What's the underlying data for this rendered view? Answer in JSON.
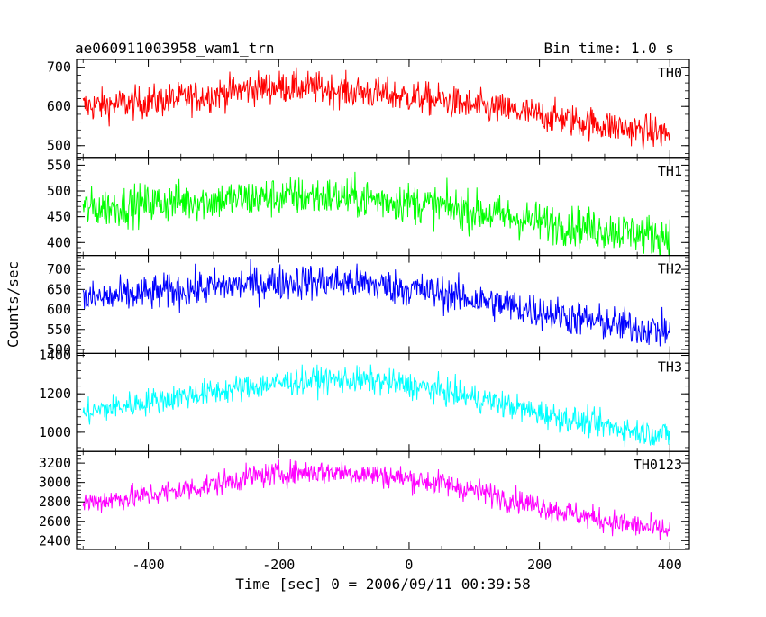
{
  "header": {
    "title": "ae060911003958_wam1_trn",
    "bin_time": "Bin time: 1.0 s"
  },
  "chart_data": {
    "type": "line",
    "title": "ae060911003958_wam1_trn",
    "xlabel": "Time [sec] 0 = 2006/09/11 00:39:58",
    "ylabel": "Counts/sec",
    "xlim": [
      -510,
      430
    ],
    "x_ticks": [
      -400,
      -200,
      0,
      200,
      400
    ],
    "grid": false,
    "panels": [
      {
        "name": "TH0",
        "color": "#ff0000",
        "ylim": [
          470,
          720
        ],
        "y_ticks": [
          500,
          600,
          700
        ],
        "x": [
          -500,
          -450,
          -400,
          -350,
          -300,
          -250,
          -200,
          -150,
          -100,
          -50,
          0,
          50,
          100,
          150,
          200,
          250,
          300,
          350,
          400
        ],
        "values": [
          600,
          605,
          612,
          620,
          630,
          645,
          650,
          648,
          640,
          632,
          625,
          615,
          600,
          590,
          578,
          565,
          552,
          540,
          530
        ],
        "noise": 30
      },
      {
        "name": "TH1",
        "color": "#00ff00",
        "ylim": [
          375,
          565
        ],
        "y_ticks": [
          400,
          450,
          500,
          550
        ],
        "x": [
          -500,
          -450,
          -400,
          -350,
          -300,
          -250,
          -200,
          -150,
          -100,
          -50,
          0,
          50,
          100,
          150,
          200,
          250,
          300,
          350,
          400
        ],
        "values": [
          465,
          470,
          475,
          480,
          482,
          485,
          488,
          490,
          488,
          483,
          478,
          470,
          460,
          450,
          440,
          432,
          425,
          418,
          412
        ],
        "noise": 28
      },
      {
        "name": "TH2",
        "color": "#0000ff",
        "ylim": [
          490,
          735
        ],
        "y_ticks": [
          500,
          550,
          600,
          650,
          700
        ],
        "x": [
          -500,
          -450,
          -400,
          -350,
          -300,
          -250,
          -200,
          -150,
          -100,
          -50,
          0,
          50,
          100,
          150,
          200,
          250,
          300,
          350,
          400
        ],
        "values": [
          625,
          632,
          640,
          648,
          656,
          663,
          668,
          670,
          668,
          662,
          652,
          640,
          625,
          610,
          595,
          580,
          565,
          555,
          545
        ],
        "noise": 32
      },
      {
        "name": "TH3",
        "color": "#00ffff",
        "ylim": [
          900,
          1410
        ],
        "y_ticks": [
          1000,
          1200,
          1400
        ],
        "x": [
          -500,
          -450,
          -400,
          -350,
          -300,
          -250,
          -200,
          -150,
          -100,
          -50,
          0,
          50,
          100,
          150,
          200,
          250,
          300,
          350,
          400
        ],
        "values": [
          1100,
          1130,
          1160,
          1185,
          1210,
          1235,
          1255,
          1270,
          1275,
          1265,
          1245,
          1215,
          1180,
          1140,
          1100,
          1065,
          1035,
          1005,
          985
        ],
        "noise": 50
      },
      {
        "name": "TH0123",
        "color": "#ff00ff",
        "ylim": [
          2310,
          3320
        ],
        "y_ticks": [
          2400,
          2600,
          2800,
          3000,
          3200
        ],
        "x": [
          -500,
          -450,
          -400,
          -350,
          -300,
          -250,
          -200,
          -150,
          -100,
          -50,
          0,
          50,
          100,
          150,
          200,
          250,
          300,
          350,
          400
        ],
        "values": [
          2790,
          2830,
          2870,
          2920,
          2980,
          3050,
          3090,
          3110,
          3105,
          3080,
          3040,
          2990,
          2920,
          2840,
          2760,
          2680,
          2610,
          2550,
          2500
        ],
        "noise": 90
      }
    ]
  }
}
